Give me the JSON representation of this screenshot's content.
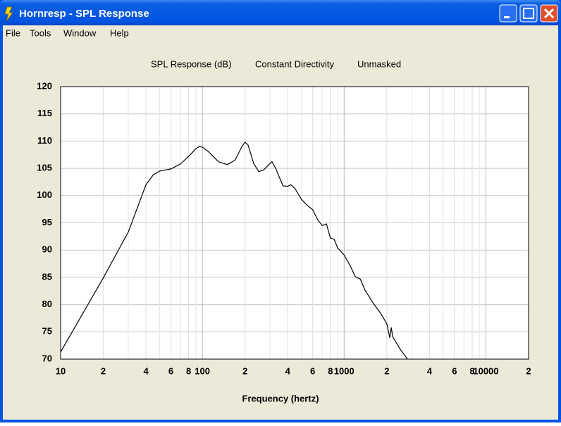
{
  "window": {
    "title": "Hornresp - SPL Response",
    "menu": [
      "File",
      "Tools",
      "Window",
      "Help"
    ]
  },
  "chart_data": {
    "type": "line",
    "title": [
      "SPL Response (dB)",
      "Constant Directivity",
      "Unmasked"
    ],
    "x_label": "Frequency (hertz)",
    "xscale": "log",
    "xlim": [
      10,
      20000
    ],
    "ylim": [
      70,
      120
    ],
    "xticks": [
      10,
      {
        "value": 20,
        "label": "2"
      },
      {
        "value": 40,
        "label": "4"
      },
      {
        "value": 60,
        "label": "6"
      },
      {
        "value": 80,
        "label": "8"
      },
      100,
      {
        "value": 200,
        "label": "2"
      },
      {
        "value": 400,
        "label": "4"
      },
      {
        "value": 600,
        "label": "6"
      },
      {
        "value": 800,
        "label": "8"
      },
      1000,
      {
        "value": 2000,
        "label": "2"
      },
      {
        "value": 4000,
        "label": "4"
      },
      {
        "value": 6000,
        "label": "6"
      },
      {
        "value": 8000,
        "label": "8"
      },
      10000,
      {
        "value": 20000,
        "label": "2"
      }
    ],
    "x_minor_ticks": [
      30,
      50,
      70,
      90,
      300,
      500,
      700,
      900,
      3000,
      5000,
      7000,
      9000
    ],
    "yticks": [
      70,
      75,
      80,
      85,
      90,
      95,
      100,
      105,
      110,
      115,
      120
    ],
    "grid": true,
    "series": [
      {
        "color": "#000000",
        "x": [
          10,
          20,
          30,
          40,
          45,
          50,
          60,
          70,
          80,
          90,
          95,
          100,
          110,
          130,
          150,
          170,
          190,
          200,
          210,
          230,
          250,
          270,
          300,
          310,
          330,
          370,
          400,
          420,
          450,
          500,
          550,
          600,
          650,
          700,
          750,
          800,
          850,
          900,
          1000,
          1100,
          1200,
          1300,
          1400,
          1600,
          1800,
          2000,
          2100,
          2150,
          2200,
          2500,
          2800
        ],
        "values": [
          71.3,
          84.9,
          93.3,
          102,
          103.8,
          104.5,
          104.9,
          105.8,
          107.2,
          108.6,
          109,
          108.9,
          108.1,
          106.2,
          105.7,
          106.5,
          109,
          109.8,
          109.3,
          105.9,
          104.4,
          104.7,
          105.9,
          106.2,
          104.9,
          101.8,
          101.7,
          102,
          101.3,
          99.3,
          98.2,
          97.4,
          95.6,
          94.5,
          94.8,
          92.2,
          92,
          90.4,
          89.1,
          87.2,
          85.1,
          84.7,
          82.7,
          80.3,
          78.5,
          76.5,
          73.9,
          75.8,
          74.1,
          71.7,
          70
        ]
      }
    ]
  }
}
